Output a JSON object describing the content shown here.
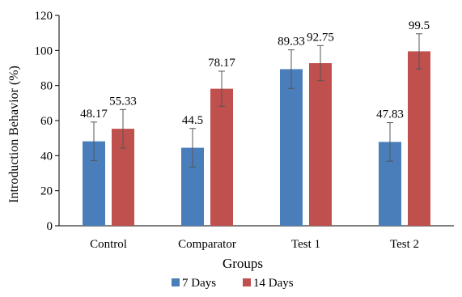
{
  "chart_data": {
    "type": "bar",
    "title": "",
    "xlabel": "Groups",
    "ylabel": "Introduction Behavior  (%)",
    "categories": [
      "Control",
      "Comparator",
      "Test 1",
      "Test 2"
    ],
    "ylim": [
      0,
      120
    ],
    "yticks": [
      "0",
      "20",
      "40",
      "60",
      "80",
      "100",
      "120"
    ],
    "grid": false,
    "legend_position": "bottom",
    "series": [
      {
        "name": "7 Days",
        "color": "#4a7ebb",
        "values": [
          48.17,
          44.5,
          89.33,
          47.83
        ],
        "labels": [
          "48.17",
          "44.5",
          "89.33",
          "47.83"
        ],
        "errors": [
          11,
          11,
          11,
          11
        ]
      },
      {
        "name": "14 Days",
        "color": "#c0504d",
        "values": [
          55.33,
          78.17,
          92.75,
          99.5
        ],
        "labels": [
          "55.33",
          "78.17",
          "92.75",
          "99.5"
        ],
        "errors": [
          11,
          10,
          10,
          10
        ]
      }
    ]
  }
}
